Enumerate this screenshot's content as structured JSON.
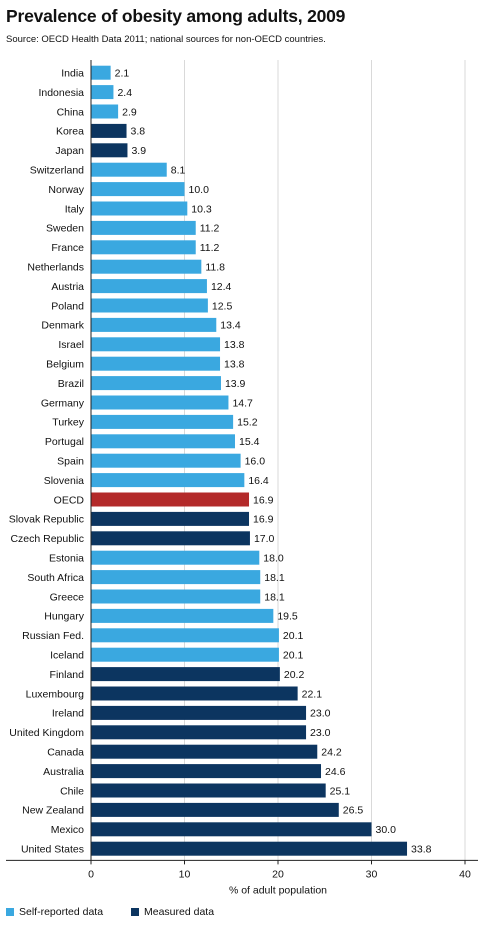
{
  "header": {
    "title": "Prevalence of obesity among adults, 2009",
    "source": "Source: OECD Health Data 2011; national sources for non-OECD countries."
  },
  "colors": {
    "self_reported": "#3aa8e0",
    "measured": "#0c3560",
    "oecd": "#b32a2a",
    "grid": "#d9d9d9"
  },
  "legend": [
    {
      "label": "Self-reported data",
      "color": "#3aa8e0"
    },
    {
      "label": "Measured data",
      "color": "#0c3560"
    }
  ],
  "chart_data": {
    "type": "bar",
    "orientation": "horizontal",
    "title": "Prevalence of obesity among adults, 2009",
    "xlabel": "% of adult population",
    "ylabel": "",
    "xlim": [
      0,
      40
    ],
    "xticks": [
      0,
      10,
      20,
      30,
      40
    ],
    "grid": true,
    "legend_position": "bottom-left",
    "categories": [
      "India",
      "Indonesia",
      "China",
      "Korea",
      "Japan",
      "Switzerland",
      "Norway",
      "Italy",
      "Sweden",
      "France",
      "Netherlands",
      "Austria",
      "Poland",
      "Denmark",
      "Israel",
      "Belgium",
      "Brazil",
      "Germany",
      "Turkey",
      "Portugal",
      "Spain",
      "Slovenia",
      "OECD",
      "Slovak Republic",
      "Czech Republic",
      "Estonia",
      "South Africa",
      "Greece",
      "Hungary",
      "Russian Fed.",
      "Iceland",
      "Finland",
      "Luxembourg",
      "Ireland",
      "United Kingdom",
      "Canada",
      "Australia",
      "Chile",
      "New Zealand",
      "Mexico",
      "United States"
    ],
    "values": [
      2.1,
      2.4,
      2.9,
      3.8,
      3.9,
      8.1,
      10.0,
      10.3,
      11.2,
      11.2,
      11.8,
      12.4,
      12.5,
      13.4,
      13.8,
      13.8,
      13.9,
      14.7,
      15.2,
      15.4,
      16.0,
      16.4,
      16.9,
      16.9,
      17.0,
      18.0,
      18.1,
      18.1,
      19.5,
      20.1,
      20.1,
      20.2,
      22.1,
      23.0,
      23.0,
      24.2,
      24.6,
      25.1,
      26.5,
      30.0,
      33.8
    ],
    "value_labels": [
      "2.1",
      "2.4",
      "2.9",
      "3.8",
      "3.9",
      "8.1",
      "10.0",
      "10.3",
      "11.2",
      "11.2",
      "11.8",
      "12.4",
      "12.5",
      "13.4",
      "13.8",
      "13.8",
      "13.9",
      "14.7",
      "15.2",
      "15.4",
      "16.0",
      "16.4",
      "16.9",
      "16.9",
      "17.0",
      "18.0",
      "18.1",
      "18.1",
      "19.5",
      "20.1",
      "20.1",
      "20.2",
      "22.1",
      "23.0",
      "23.0",
      "24.2",
      "24.6",
      "25.1",
      "26.5",
      "30.0",
      "33.8"
    ],
    "data_type": [
      "self",
      "self",
      "self",
      "measured",
      "measured",
      "self",
      "self",
      "self",
      "self",
      "self",
      "self",
      "self",
      "self",
      "self",
      "self",
      "self",
      "self",
      "self",
      "self",
      "self",
      "self",
      "self",
      "oecd",
      "measured",
      "measured",
      "self",
      "self",
      "self",
      "self",
      "self",
      "self",
      "measured",
      "measured",
      "measured",
      "measured",
      "measured",
      "measured",
      "measured",
      "measured",
      "measured",
      "measured"
    ]
  }
}
